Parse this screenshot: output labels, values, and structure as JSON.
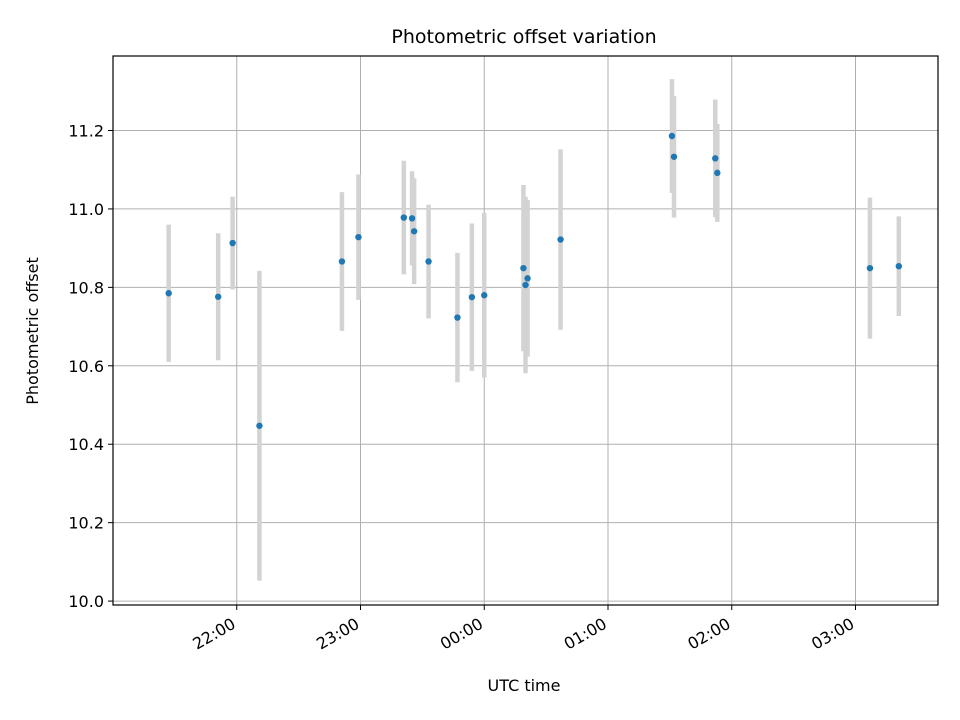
{
  "chart_data": {
    "type": "scatter",
    "title": "Photometric offset variation",
    "xlabel": "UTC time",
    "ylabel": "Photometric offset",
    "x_axis": "time (UTC, HH:MM)",
    "xlim": [
      "21:00",
      "03:40"
    ],
    "ylim": [
      9.99,
      11.39
    ],
    "x_ticks": [
      "22:00",
      "23:00",
      "00:00",
      "01:00",
      "02:00",
      "03:00"
    ],
    "y_ticks": [
      "10.0",
      "10.2",
      "10.4",
      "10.6",
      "10.8",
      "11.0",
      "11.2"
    ],
    "grid": true,
    "point_color": "#1f77b4",
    "errorbar_color": "#d3d3d3",
    "series": [
      {
        "points": [
          {
            "x": "21:27",
            "y": 10.785,
            "err": 0.175
          },
          {
            "x": "21:51",
            "y": 10.776,
            "err": 0.162
          },
          {
            "x": "21:58",
            "y": 10.913,
            "err": 0.118
          },
          {
            "x": "22:11",
            "y": 10.447,
            "err": 0.395
          },
          {
            "x": "22:51",
            "y": 10.866,
            "err": 0.177
          },
          {
            "x": "22:59",
            "y": 10.928,
            "err": 0.16
          },
          {
            "x": "23:21",
            "y": 10.978,
            "err": 0.145
          },
          {
            "x": "23:25",
            "y": 10.976,
            "err": 0.12
          },
          {
            "x": "23:26",
            "y": 10.943,
            "err": 0.135
          },
          {
            "x": "23:33",
            "y": 10.866,
            "err": 0.145
          },
          {
            "x": "23:47",
            "y": 10.723,
            "err": 0.165
          },
          {
            "x": "23:54",
            "y": 10.775,
            "err": 0.188
          },
          {
            "x": "00:00",
            "y": 10.78,
            "err": 0.21
          },
          {
            "x": "00:19",
            "y": 10.849,
            "err": 0.212
          },
          {
            "x": "00:20",
            "y": 10.806,
            "err": 0.225
          },
          {
            "x": "00:21",
            "y": 10.823,
            "err": 0.2
          },
          {
            "x": "00:37",
            "y": 10.922,
            "err": 0.23
          },
          {
            "x": "01:31",
            "y": 11.186,
            "err": 0.145
          },
          {
            "x": "01:32",
            "y": 11.133,
            "err": 0.155
          },
          {
            "x": "01:52",
            "y": 11.129,
            "err": 0.15
          },
          {
            "x": "01:53",
            "y": 11.092,
            "err": 0.125
          },
          {
            "x": "03:07",
            "y": 10.849,
            "err": 0.18
          },
          {
            "x": "03:21",
            "y": 10.854,
            "err": 0.127
          }
        ]
      }
    ]
  }
}
